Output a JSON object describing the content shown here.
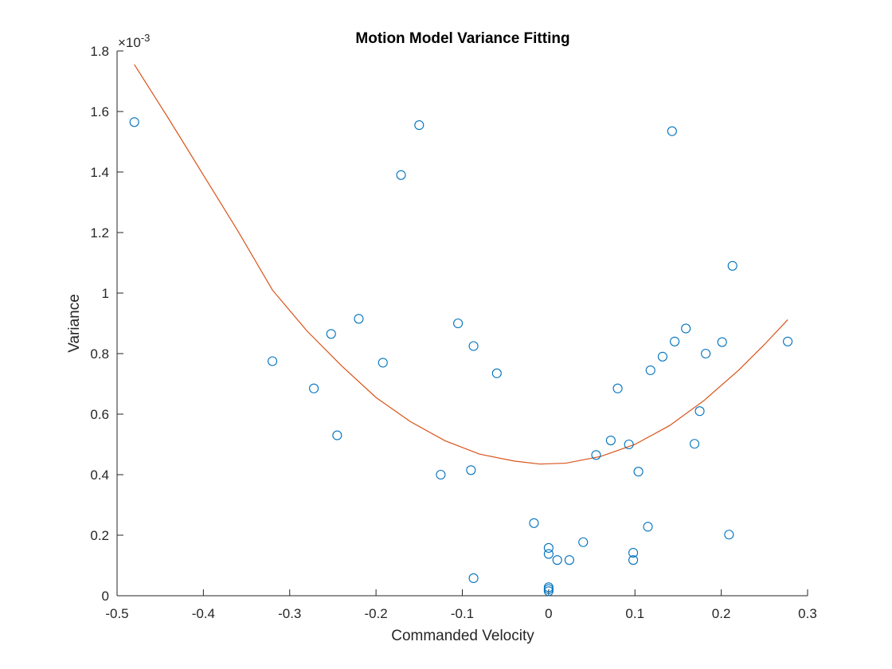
{
  "chart_data": {
    "type": "scatter",
    "title": "Motion Model Variance Fitting",
    "xlabel": "Commanded Velocity",
    "ylabel": "Variance",
    "xlim": [
      -0.5,
      0.3
    ],
    "ylim": [
      0,
      0.0018
    ],
    "y_exponent_label": "×10",
    "y_exponent_power": "-3",
    "x_ticks": [
      {
        "value": -0.5,
        "label": "-0.5"
      },
      {
        "value": -0.4,
        "label": "-0.4"
      },
      {
        "value": -0.3,
        "label": "-0.3"
      },
      {
        "value": -0.2,
        "label": "-0.2"
      },
      {
        "value": -0.1,
        "label": "-0.1"
      },
      {
        "value": 0,
        "label": "0"
      },
      {
        "value": 0.1,
        "label": "0.1"
      },
      {
        "value": 0.2,
        "label": "0.2"
      },
      {
        "value": 0.3,
        "label": "0.3"
      }
    ],
    "y_ticks": [
      {
        "value": 0,
        "label": "0"
      },
      {
        "value": 0.0002,
        "label": "0.2"
      },
      {
        "value": 0.0004,
        "label": "0.4"
      },
      {
        "value": 0.0006,
        "label": "0.6"
      },
      {
        "value": 0.0008,
        "label": "0.8"
      },
      {
        "value": 0.001,
        "label": "1"
      },
      {
        "value": 0.0012,
        "label": "1.2"
      },
      {
        "value": 0.0014,
        "label": "1.4"
      },
      {
        "value": 0.0016,
        "label": "1.6"
      },
      {
        "value": 0.0018,
        "label": "1.8"
      }
    ],
    "grid": false,
    "colors": {
      "points": "#0072BD",
      "fit_line": "#D95319",
      "axis": "#262626"
    },
    "series": [
      {
        "type": "scatter",
        "marker": "circle",
        "points": [
          {
            "x": -0.48,
            "y": 0.001565
          },
          {
            "x": -0.32,
            "y": 0.000775
          },
          {
            "x": -0.272,
            "y": 0.000685
          },
          {
            "x": -0.252,
            "y": 0.000865
          },
          {
            "x": -0.245,
            "y": 0.00053
          },
          {
            "x": -0.22,
            "y": 0.000915
          },
          {
            "x": -0.192,
            "y": 0.00077
          },
          {
            "x": -0.171,
            "y": 0.00139
          },
          {
            "x": -0.15,
            "y": 0.001555
          },
          {
            "x": -0.125,
            "y": 0.0004
          },
          {
            "x": -0.105,
            "y": 0.0009
          },
          {
            "x": -0.09,
            "y": 0.000415
          },
          {
            "x": -0.087,
            "y": 0.000825
          },
          {
            "x": -0.087,
            "y": 5.8e-05
          },
          {
            "x": -0.06,
            "y": 0.000735
          },
          {
            "x": -0.017,
            "y": 0.00024
          },
          {
            "x": 0,
            "y": 0.000158
          },
          {
            "x": 0,
            "y": 0.000138
          },
          {
            "x": 0,
            "y": 2.8e-05
          },
          {
            "x": 0,
            "y": 2.2e-05
          },
          {
            "x": 0,
            "y": 1.5e-05
          },
          {
            "x": 0.01,
            "y": 0.000118
          },
          {
            "x": 0.024,
            "y": 0.000118
          },
          {
            "x": 0.04,
            "y": 0.000177
          },
          {
            "x": 0.055,
            "y": 0.000465
          },
          {
            "x": 0.072,
            "y": 0.000513
          },
          {
            "x": 0.08,
            "y": 0.000685
          },
          {
            "x": 0.093,
            "y": 0.0005
          },
          {
            "x": 0.098,
            "y": 0.000142
          },
          {
            "x": 0.098,
            "y": 0.000118
          },
          {
            "x": 0.104,
            "y": 0.00041
          },
          {
            "x": 0.115,
            "y": 0.000228
          },
          {
            "x": 0.118,
            "y": 0.000745
          },
          {
            "x": 0.132,
            "y": 0.00079
          },
          {
            "x": 0.143,
            "y": 0.001535
          },
          {
            "x": 0.146,
            "y": 0.00084
          },
          {
            "x": 0.159,
            "y": 0.000883
          },
          {
            "x": 0.169,
            "y": 0.000502
          },
          {
            "x": 0.175,
            "y": 0.00061
          },
          {
            "x": 0.182,
            "y": 0.0008
          },
          {
            "x": 0.201,
            "y": 0.000838
          },
          {
            "x": 0.209,
            "y": 0.000202
          },
          {
            "x": 0.213,
            "y": 0.00109
          },
          {
            "x": 0.277,
            "y": 0.00084
          }
        ]
      },
      {
        "type": "line",
        "points": [
          {
            "x": -0.48,
            "y": 0.001755
          },
          {
            "x": -0.44,
            "y": 0.001575
          },
          {
            "x": -0.4,
            "y": 0.00139
          },
          {
            "x": -0.36,
            "y": 0.001205
          },
          {
            "x": -0.32,
            "y": 0.00101
          },
          {
            "x": -0.28,
            "y": 0.000875
          },
          {
            "x": -0.24,
            "y": 0.00076
          },
          {
            "x": -0.2,
            "y": 0.000655
          },
          {
            "x": -0.16,
            "y": 0.000575
          },
          {
            "x": -0.12,
            "y": 0.000512
          },
          {
            "x": -0.08,
            "y": 0.000468
          },
          {
            "x": -0.04,
            "y": 0.000445
          },
          {
            "x": -0.01,
            "y": 0.000435
          },
          {
            "x": 0.02,
            "y": 0.000438
          },
          {
            "x": 0.06,
            "y": 0.00046
          },
          {
            "x": 0.1,
            "y": 0.0005
          },
          {
            "x": 0.14,
            "y": 0.000562
          },
          {
            "x": 0.18,
            "y": 0.000645
          },
          {
            "x": 0.22,
            "y": 0.000745
          },
          {
            "x": 0.25,
            "y": 0.00083
          },
          {
            "x": 0.277,
            "y": 0.000912
          }
        ]
      }
    ]
  }
}
